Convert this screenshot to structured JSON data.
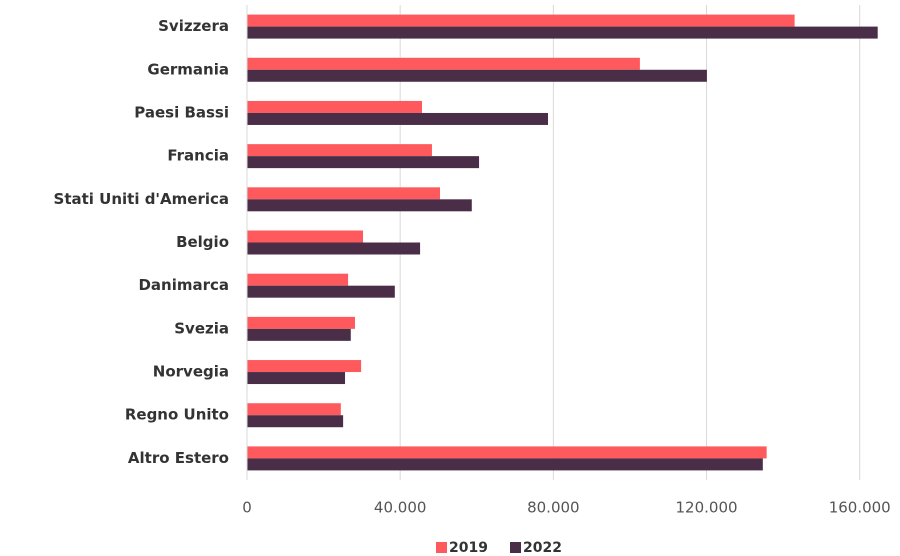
{
  "chart_data": {
    "type": "hbar",
    "categories": [
      "Svizzera",
      "Germania",
      "Paesi Bassi",
      "Francia",
      "Stati Uniti d'America",
      "Belgio",
      "Danimarca",
      "Svezia",
      "Norvegia",
      "Regno Unito",
      "Altro Estero"
    ],
    "series": [
      {
        "name": "2019",
        "color": "#fe5a5e",
        "values": [
          143000,
          102600,
          45700,
          48300,
          50400,
          30300,
          26400,
          28200,
          29800,
          24500,
          135700
        ]
      },
      {
        "name": "2022",
        "color": "#4a2e48",
        "values": [
          164700,
          120100,
          78600,
          60600,
          58700,
          45200,
          38600,
          27100,
          25600,
          25100,
          134700
        ]
      }
    ],
    "xlim": [
      0,
      170000
    ],
    "xticks": [
      0,
      {
        "value": 40000,
        "label": "40.000"
      },
      {
        "value": 80000,
        "label": "80.000"
      },
      {
        "value": 120000,
        "label": "120.000"
      },
      {
        "value": 160000,
        "label": "160.000"
      }
    ],
    "grid": true,
    "legend": "bottom"
  }
}
